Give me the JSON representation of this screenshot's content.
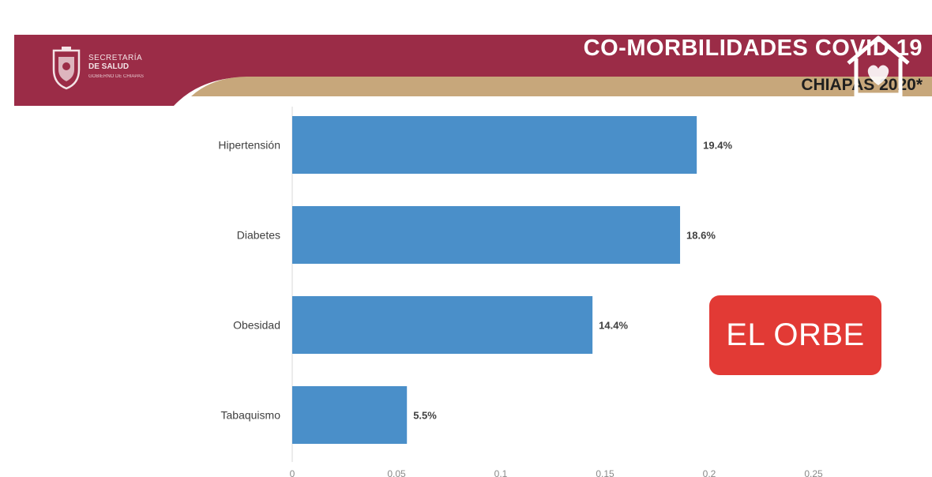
{
  "header": {
    "title": "CO-MORBILIDADES COVID 19",
    "subtitle": "CHIAPAS 2020*",
    "logo": {
      "line1": "SECRETARÍA",
      "line2": "DE SALUD",
      "line3": "GOBIERNO DE CHIAPAS",
      "icon": "coat-of-arms-icon"
    },
    "overlay_icon": "house-heart-icon"
  },
  "watermark": {
    "label": "EL ORBE"
  },
  "colors": {
    "banner_maroon": "#9b2c47",
    "banner_gold": "#c7a77b",
    "bar": "#4a8fc9",
    "watermark": "#e23a35"
  },
  "chart_data": {
    "type": "bar",
    "orientation": "horizontal",
    "categories": [
      "Hipertensión",
      "Diabetes",
      "Obesidad",
      "Tabaquismo"
    ],
    "values": [
      0.194,
      0.186,
      0.144,
      0.055
    ],
    "value_labels": [
      "19.4%",
      "18.6%",
      "14.4%",
      "5.5%"
    ],
    "xlim": [
      0,
      0.25
    ],
    "xticks": [
      "0",
      "0.05",
      "0.1",
      "0.15",
      "0.2",
      "0.25"
    ],
    "title": "",
    "xlabel": "",
    "ylabel": "",
    "grid": false,
    "legend": "none"
  }
}
